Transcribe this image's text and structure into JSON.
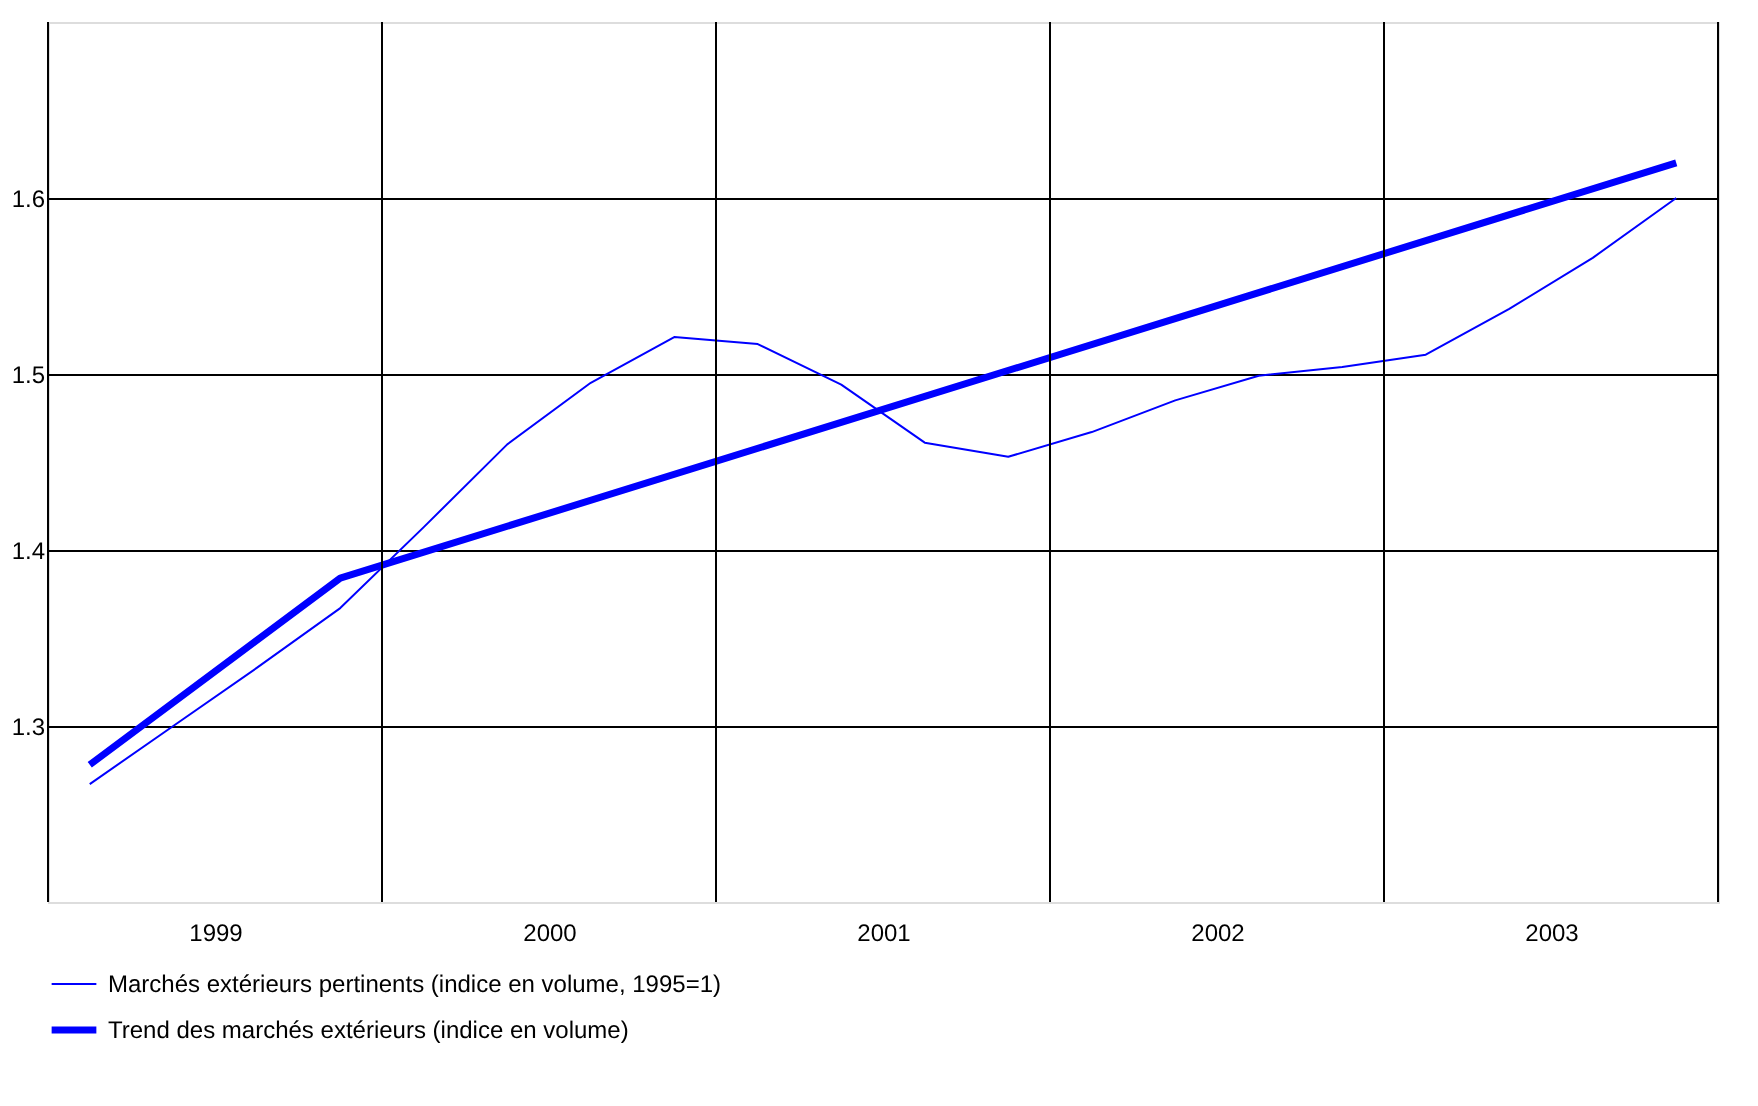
{
  "chart_data": {
    "type": "line",
    "xlim": [
      1999,
      2004
    ],
    "ylim": [
      1.2,
      1.7
    ],
    "xticks": [
      {
        "value": 1999,
        "label": null
      },
      {
        "value": 1999.5,
        "label": "1999"
      },
      {
        "value": 2000,
        "label": null
      },
      {
        "value": 2000.5,
        "label": "2000"
      },
      {
        "value": 2001,
        "label": null
      },
      {
        "value": 2001.5,
        "label": "2001"
      },
      {
        "value": 2002,
        "label": null
      },
      {
        "value": 2002.5,
        "label": "2002"
      },
      {
        "value": 2003,
        "label": null
      },
      {
        "value": 2003.5,
        "label": "2003"
      },
      {
        "value": 2004,
        "label": null
      }
    ],
    "yticks": [
      1.3,
      1.4,
      1.5,
      1.6
    ],
    "grid": true,
    "legend": "bottom",
    "marker": "none",
    "line_style": "solid",
    "series": [
      {
        "name": "Marchés extérieurs pertinents (indice en volume, 1995=1)",
        "color": "#0000ff",
        "x": [
          1999.125,
          1999.375,
          1999.625,
          1999.875,
          2000.125,
          2000.375,
          2000.625,
          2000.875,
          2001.125,
          2001.375,
          2001.625,
          2001.875,
          2002.125,
          2002.375,
          2002.625,
          2002.875,
          2003.125,
          2003.375,
          2003.625,
          2003.875
        ],
        "values": [
          1.267,
          1.3,
          1.333,
          1.367,
          1.413,
          1.46,
          1.495,
          1.521,
          1.517,
          1.494,
          1.461,
          1.453,
          1.467,
          1.485,
          1.499,
          1.504,
          1.511,
          1.537,
          1.566,
          1.6
        ]
      },
      {
        "name": "Trend des marchés extérieurs (indice en volume)",
        "color": "#0000ff",
        "x": [
          1999.125,
          1999.875,
          2003.875
        ],
        "values": [
          1.278,
          1.384,
          1.62
        ]
      }
    ]
  }
}
